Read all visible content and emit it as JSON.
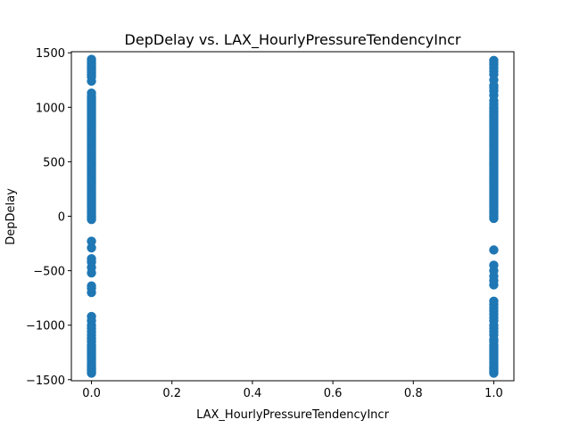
{
  "chart_data": {
    "type": "scatter",
    "title": "DepDelay vs. LAX_HourlyPressureTendencyIncr",
    "xlabel": "LAX_HourlyPressureTendencyIncr",
    "ylabel": "DepDelay",
    "xlim": [
      -0.05,
      1.05
    ],
    "ylim": [
      -1510,
      1510
    ],
    "xticks": [
      0.0,
      0.2,
      0.4,
      0.6,
      0.8,
      1.0
    ],
    "xtick_labels": [
      "0.0",
      "0.2",
      "0.4",
      "0.6",
      "0.8",
      "1.0"
    ],
    "yticks": [
      -1500,
      -1000,
      -500,
      0,
      500,
      1000,
      1500
    ],
    "ytick_labels": [
      "−1500",
      "−1000",
      "−500",
      "0",
      "500",
      "1000",
      "1500"
    ],
    "grid": false,
    "marker_color": "#1f77b4",
    "series": [
      {
        "x_value": 0,
        "y": [
          -1440,
          -1425,
          -1410,
          -1395,
          -1380,
          -1360,
          -1340,
          -1320,
          -1300,
          -1280,
          -1260,
          -1240,
          -1220,
          -1200,
          -1180,
          -1150,
          -1120,
          -1090,
          -1060,
          -1030,
          -1000,
          -960,
          -920,
          -700,
          -660,
          -640,
          -520,
          -470,
          -420,
          -390,
          -290,
          -230,
          -30,
          -15,
          0,
          20,
          40,
          60,
          80,
          100,
          120,
          140,
          160,
          180,
          200,
          220,
          240,
          260,
          280,
          300,
          320,
          340,
          360,
          380,
          400,
          420,
          440,
          460,
          480,
          500,
          520,
          540,
          560,
          580,
          600,
          620,
          640,
          660,
          680,
          700,
          720,
          740,
          760,
          780,
          800,
          820,
          840,
          860,
          880,
          900,
          920,
          940,
          960,
          980,
          1000,
          1020,
          1040,
          1060,
          1080,
          1100,
          1130,
          1240,
          1280,
          1300,
          1320,
          1340,
          1360,
          1380,
          1400,
          1420,
          1440
        ]
      },
      {
        "x_value": 1,
        "y": [
          -1440,
          -1425,
          -1410,
          -1395,
          -1380,
          -1360,
          -1340,
          -1320,
          -1300,
          -1280,
          -1260,
          -1240,
          -1220,
          -1200,
          -1180,
          -1150,
          -1130,
          -1090,
          -1060,
          -1030,
          -1000,
          -960,
          -930,
          -900,
          -870,
          -840,
          -810,
          -780,
          -630,
          -590,
          -550,
          -500,
          -450,
          -310,
          -20,
          0,
          20,
          40,
          60,
          80,
          100,
          120,
          140,
          160,
          180,
          200,
          220,
          240,
          260,
          280,
          300,
          320,
          340,
          360,
          380,
          400,
          420,
          440,
          460,
          480,
          500,
          520,
          540,
          560,
          580,
          600,
          620,
          640,
          660,
          680,
          700,
          720,
          740,
          760,
          780,
          800,
          820,
          840,
          860,
          880,
          900,
          920,
          940,
          960,
          980,
          1000,
          1030,
          1060,
          1110,
          1150,
          1180,
          1200,
          1250,
          1300,
          1330,
          1360,
          1390,
          1410,
          1430
        ]
      }
    ]
  }
}
